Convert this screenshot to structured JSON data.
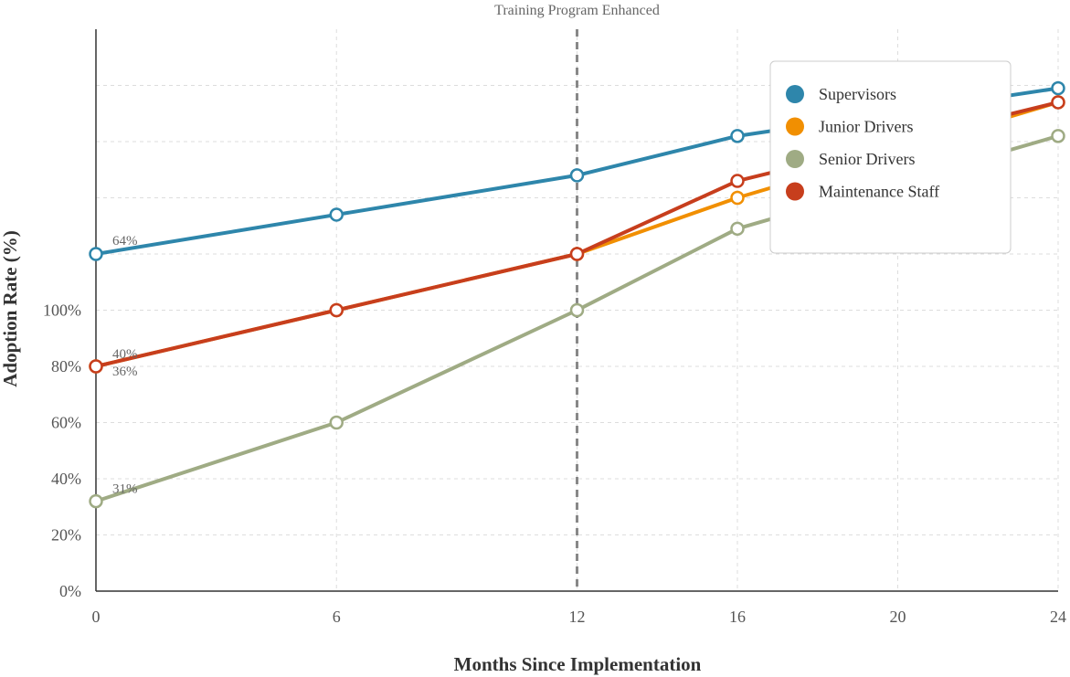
{
  "chart_data": {
    "type": "line",
    "xlabel": "Months Since Implementation",
    "ylabel": "Adoption Rate (%)",
    "x": [
      0,
      6,
      12,
      16,
      20,
      24
    ],
    "x_tick_labels": [
      "0",
      "6",
      "12",
      "16",
      "20",
      "24"
    ],
    "y_tick_labels": [
      "0%",
      "20%",
      "40%",
      "60%",
      "80%",
      "100%"
    ],
    "y_tick_values": [
      0,
      20,
      40,
      60,
      80,
      100
    ],
    "ylim": [
      0,
      200
    ],
    "xlim": [
      0,
      24
    ],
    "grid": true,
    "legend_position": "top-right",
    "annotation": {
      "text": "Training Program Enhanced",
      "x": 12
    },
    "series": [
      {
        "name": "Supervisors",
        "color": "#2e86ab",
        "x": [
          0,
          6,
          12,
          16,
          24
        ],
        "values": [
          120,
          134,
          148,
          162,
          179
        ],
        "label": "64%"
      },
      {
        "name": "Junior Drivers",
        "color": "#f18f01",
        "x": [
          0,
          6,
          12,
          16,
          24
        ],
        "values": [
          80,
          100,
          120,
          140,
          174
        ],
        "label": "36%"
      },
      {
        "name": "Senior Drivers",
        "color": "#9fab84",
        "x": [
          0,
          6,
          12,
          16,
          24
        ],
        "values": [
          32,
          60,
          100,
          129,
          162
        ],
        "label": "31%"
      },
      {
        "name": "Maintenance Staff",
        "color": "#c73e1d",
        "x": [
          0,
          6,
          12,
          16,
          24
        ],
        "values": [
          80,
          100,
          120,
          146,
          174
        ],
        "label": "40%"
      }
    ]
  }
}
